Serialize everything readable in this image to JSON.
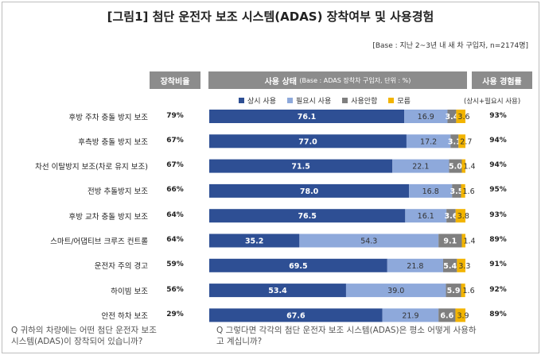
{
  "title": "[그림1] 첨단 운전자 보조 시스템(ADAS) 장착여부 및 사용경험",
  "base_note": "[Base : 지난 2~3년 내 새 차 구입자, n=2174명]",
  "headers": {
    "install_rate": "장착비율",
    "usage_status": "사용 상태",
    "usage_status_sub": "(Base : ADAS 장착차 구입자, 단위 : %)",
    "usage_experience": "사용 경험률"
  },
  "usage_experience_note": "(상시+필요시 사용)",
  "questions": {
    "left": "Q 귀하의 차량에는 어떤 첨단 운전자 보조\n시스템(ADAS)이 장착되어 있습니까?",
    "right": "Q 그렇다면 각각의 첨단 운전자 보조 시스템(ADAS)은 평소 어떻게 사용하\n고 계십니까?"
  },
  "chart_data": {
    "type": "bar",
    "orientation": "horizontal-stacked-100",
    "categories": [
      "후방 주차 충돌 방지 보조",
      "후측방 충돌 방지 보조",
      "차선 이탈방지 보조(차로 유지 보조)",
      "전방 추돌방지 보조",
      "후방 교차 충돌 방지 보조",
      "스마트/어댑티브 크루즈 컨트롤",
      "운전자 주의 경고",
      "하이빔 보조",
      "안전 하차 보조"
    ],
    "install_rate": [
      "79%",
      "67%",
      "67%",
      "66%",
      "64%",
      "64%",
      "59%",
      "56%",
      "29%"
    ],
    "usage_experience_rate": [
      "93%",
      "94%",
      "94%",
      "95%",
      "93%",
      "89%",
      "91%",
      "92%",
      "89%"
    ],
    "series": [
      {
        "name": "상시 사용",
        "color": "#2e4f94",
        "values": [
          76.1,
          77.0,
          71.5,
          78.0,
          76.5,
          35.2,
          69.5,
          53.4,
          67.6
        ]
      },
      {
        "name": "필요시 사용",
        "color": "#8ea9db",
        "values": [
          16.9,
          17.2,
          22.1,
          16.8,
          16.1,
          54.3,
          21.8,
          39.0,
          21.9
        ]
      },
      {
        "name": "사용안함",
        "color": "#7f7f7f",
        "values": [
          3.4,
          3.1,
          5.0,
          3.5,
          3.6,
          9.1,
          5.4,
          5.9,
          6.6
        ]
      },
      {
        "name": "모름",
        "color": "#f2b400",
        "values": [
          3.6,
          2.7,
          1.4,
          1.6,
          3.8,
          1.4,
          3.3,
          1.6,
          3.9
        ]
      }
    ],
    "xlim": [
      0,
      100
    ]
  }
}
